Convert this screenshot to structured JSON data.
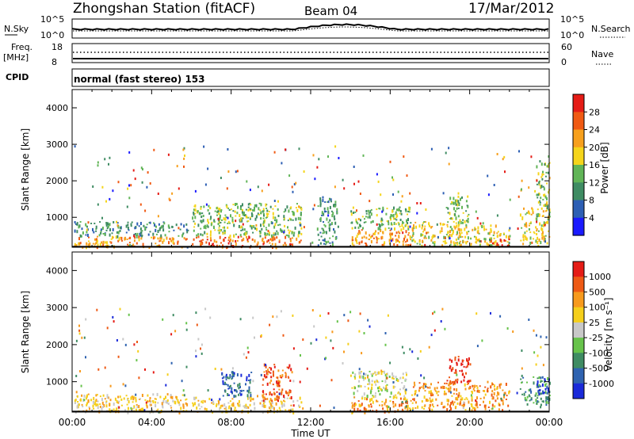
{
  "header": {
    "station": "Zhongshan Station (fitACF)",
    "beam": "Beam 04",
    "date": "17/Mar/2012"
  },
  "status_panels": {
    "nsky_label": "N.Sky",
    "nsky_ticks": [
      "10^5",
      "10^0"
    ],
    "nsearch_label": "N.Search",
    "nsearch_ticks": [
      "10^5",
      "10^0"
    ],
    "freq_label": "Freq.",
    "freq_unit": "[MHz]",
    "freq_ticks": [
      "18",
      "8"
    ],
    "nave_label": "Nave",
    "nave_ticks": [
      "60",
      "0"
    ],
    "cpid_label": "CPID",
    "cpid_text": "normal (fast stereo) 153"
  },
  "chart_data": [
    {
      "type": "heatmap",
      "name": "power",
      "ylabel": "Slant Range [km]",
      "ylim": [
        180,
        4500
      ],
      "yticks": [
        "1000",
        "2000",
        "3000",
        "4000"
      ],
      "xlim": [
        0,
        24
      ],
      "colorbar": {
        "label": "Power [dB]",
        "range": [
          0,
          32
        ],
        "ticks": [
          "4",
          "8",
          "12",
          "16",
          "20",
          "24",
          "28"
        ],
        "colors": [
          "#1a1aff",
          "#2d5fb4",
          "#3f8c63",
          "#61b557",
          "#f5d51b",
          "#f7a01d",
          "#f05a13",
          "#e51c16"
        ]
      },
      "regions": [
        {
          "t": [
            0.1,
            5.8
          ],
          "r": [
            200,
            500
          ],
          "level": 5
        },
        {
          "t": [
            0.1,
            5.8
          ],
          "r": [
            500,
            900
          ],
          "level": 2
        },
        {
          "t": [
            6.0,
            11.5
          ],
          "r": [
            200,
            500
          ],
          "level": 6
        },
        {
          "t": [
            6.0,
            11.5
          ],
          "r": [
            500,
            1400
          ],
          "level": 3
        },
        {
          "t": [
            12.3,
            13.3
          ],
          "r": [
            250,
            1600
          ],
          "level": 2
        },
        {
          "t": [
            14.0,
            17.0
          ],
          "r": [
            250,
            700
          ],
          "level": 5
        },
        {
          "t": [
            14.0,
            17.0
          ],
          "r": [
            700,
            1300
          ],
          "level": 3
        },
        {
          "t": [
            17.0,
            22.0
          ],
          "r": [
            250,
            900
          ],
          "level": 4
        },
        {
          "t": [
            18.8,
            20.0
          ],
          "r": [
            900,
            1600
          ],
          "level": 3
        },
        {
          "t": [
            21.0,
            22.0
          ],
          "r": [
            200,
            450
          ],
          "level": 7
        },
        {
          "t": [
            22.5,
            24.0
          ],
          "r": [
            300,
            1300
          ],
          "level": 4
        },
        {
          "t": [
            23.3,
            24.0
          ],
          "r": [
            1300,
            2700
          ],
          "level": 3
        }
      ]
    },
    {
      "type": "heatmap",
      "name": "velocity",
      "ylabel": "Slant Range [km]",
      "ylim": [
        180,
        4500
      ],
      "yticks": [
        "1000",
        "2000",
        "3000",
        "4000"
      ],
      "xlim": [
        0,
        24
      ],
      "xticks": [
        "00:00",
        "04:00",
        "08:00",
        "12:00",
        "16:00",
        "20:00",
        "00:00"
      ],
      "xlabel": "Time UT",
      "colorbar": {
        "label": "Velocity [m s⁻¹]",
        "ticks": [
          "1000",
          "500",
          "100",
          "25",
          "-25",
          "-100",
          "-500",
          "-1000"
        ],
        "colors": [
          "#1a2ad9",
          "#2f63b0",
          "#3f8c63",
          "#67c34b",
          "#c8c8c8",
          "#f5cf1b",
          "#f79a1d",
          "#ee5a15",
          "#e51c16"
        ]
      },
      "regions": [
        {
          "t": [
            0.1,
            5.8
          ],
          "r": [
            200,
            700
          ],
          "level": 5
        },
        {
          "t": [
            6.0,
            11.5
          ],
          "r": [
            200,
            600
          ],
          "level": 5
        },
        {
          "t": [
            7.5,
            9.0
          ],
          "r": [
            600,
            1300
          ],
          "level": 1
        },
        {
          "t": [
            9.5,
            11.0
          ],
          "r": [
            500,
            1500
          ],
          "level": 7
        },
        {
          "t": [
            14.0,
            16.8
          ],
          "r": [
            600,
            1300
          ],
          "level": 4
        },
        {
          "t": [
            14.0,
            17.0
          ],
          "r": [
            200,
            600
          ],
          "level": 6
        },
        {
          "t": [
            17.0,
            22.0
          ],
          "r": [
            250,
            1000
          ],
          "level": 6
        },
        {
          "t": [
            18.8,
            20.0
          ],
          "r": [
            1000,
            1700
          ],
          "level": 8
        },
        {
          "t": [
            22.5,
            24.0
          ],
          "r": [
            400,
            1200
          ],
          "level": 2
        },
        {
          "t": [
            23.3,
            24.0
          ],
          "r": [
            700,
            1100
          ],
          "level": 0
        }
      ]
    }
  ]
}
